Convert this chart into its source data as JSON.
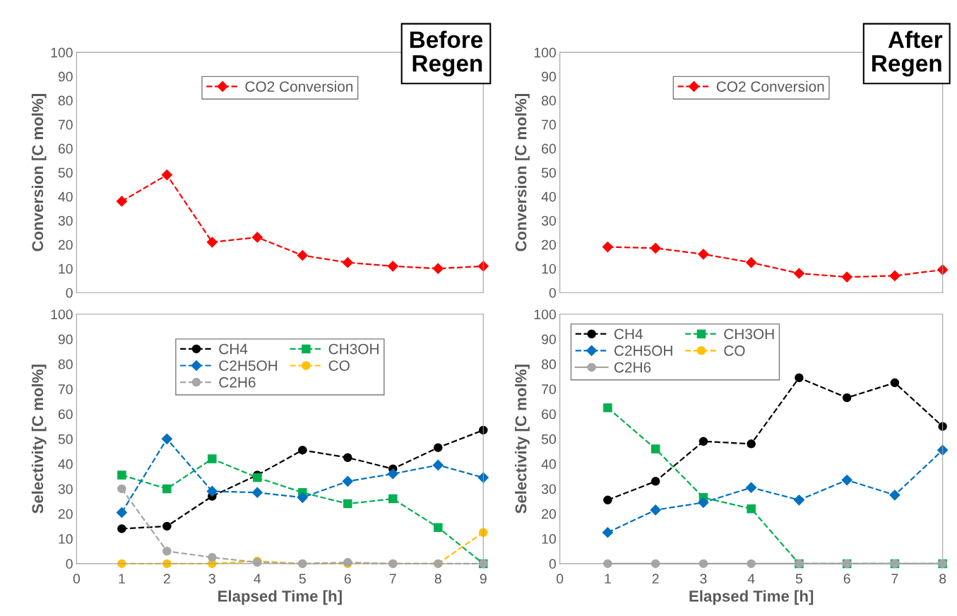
{
  "chart_data": [
    {
      "type": "line",
      "ylabel": "Conversion [C mol%]",
      "annotations": [
        "Before\nRegen"
      ],
      "x": [
        1,
        2,
        3,
        4,
        5,
        6,
        7,
        8,
        9
      ],
      "xlim": [
        0,
        9
      ],
      "xticks": [
        0,
        1,
        2,
        3,
        4,
        5,
        6,
        7,
        8,
        9
      ],
      "ylim": [
        0,
        100
      ],
      "yticks": [
        0,
        10,
        20,
        30,
        40,
        50,
        60,
        70,
        80,
        90,
        100
      ],
      "tick_labels": "y",
      "legend": "top",
      "line_style": "dashed",
      "series": [
        {
          "name": "CO2 Conversion",
          "color": "#ff0000",
          "marker": "diamond",
          "values": [
            38,
            49,
            21,
            23,
            15.5,
            12.5,
            11,
            10,
            11
          ]
        }
      ]
    },
    {
      "type": "line",
      "ylabel": "Conversion [C mol%]",
      "annotations": [
        "After\nRegen"
      ],
      "x": [
        1,
        2,
        3,
        4,
        5,
        6,
        7,
        8
      ],
      "xlim": [
        0,
        8
      ],
      "xticks": [
        0,
        1,
        2,
        3,
        4,
        5,
        6,
        7,
        8
      ],
      "ylim": [
        0,
        100
      ],
      "yticks": [
        0,
        10,
        20,
        30,
        40,
        50,
        60,
        70,
        80,
        90,
        100
      ],
      "tick_labels": "y",
      "legend": "top",
      "line_style": "dashed",
      "series": [
        {
          "name": "CO2 Conversion",
          "color": "#ff0000",
          "marker": "diamond",
          "values": [
            19,
            18.5,
            16,
            12.5,
            8,
            6.5,
            7,
            9.5
          ]
        }
      ]
    },
    {
      "type": "line",
      "ylabel": "Selectivity [C mol%]",
      "xlabel": "Elapsed Time [h]",
      "x": [
        1,
        2,
        3,
        4,
        5,
        6,
        7,
        8,
        9
      ],
      "xlim": [
        0,
        9
      ],
      "xticks": [
        0,
        1,
        2,
        3,
        4,
        5,
        6,
        7,
        8,
        9
      ],
      "ylim": [
        0,
        100
      ],
      "yticks": [
        0,
        10,
        20,
        30,
        40,
        50,
        60,
        70,
        80,
        90,
        100
      ],
      "legend": "top",
      "line_style": "dashed",
      "series": [
        {
          "name": "CH4",
          "color": "#000000",
          "marker": "circle",
          "values": [
            14,
            15,
            27,
            35.5,
            45.5,
            42.5,
            38,
            46.5,
            53.5
          ]
        },
        {
          "name": "CH3OH",
          "color": "#00b050",
          "marker": "square",
          "values": [
            35.5,
            30,
            42,
            34.5,
            28.5,
            24,
            26,
            14.5,
            0
          ]
        },
        {
          "name": "C2H5OH",
          "color": "#0070c0",
          "marker": "diamond",
          "values": [
            20.5,
            50,
            29,
            28.5,
            26.5,
            33,
            36,
            39.5,
            34.5
          ]
        },
        {
          "name": "CO",
          "color": "#ffc000",
          "marker": "circle",
          "values": [
            0,
            0,
            0,
            1,
            0,
            0,
            0,
            0,
            12.5
          ]
        },
        {
          "name": "C2H6",
          "color": "#a6a6a6",
          "marker": "circle",
          "values": [
            30,
            5,
            2.5,
            0.5,
            0,
            0.5,
            0,
            0,
            0
          ]
        }
      ]
    },
    {
      "type": "line",
      "ylabel": "Selectivity [C mol%]",
      "xlabel": "Elapsed Time [h]",
      "x": [
        1,
        2,
        3,
        4,
        5,
        6,
        7,
        8
      ],
      "xlim": [
        0,
        8
      ],
      "xticks": [
        0,
        1,
        2,
        3,
        4,
        5,
        6,
        7,
        8
      ],
      "ylim": [
        0,
        100
      ],
      "yticks": [
        0,
        10,
        20,
        30,
        40,
        50,
        60,
        70,
        80,
        90,
        100
      ],
      "legend": "top left",
      "line_style": "dashed",
      "series": [
        {
          "name": "CH4",
          "color": "#000000",
          "marker": "circle",
          "values": [
            25.5,
            33,
            49,
            48,
            74.5,
            66.5,
            72.5,
            55
          ]
        },
        {
          "name": "CH3OH",
          "color": "#00b050",
          "marker": "square",
          "values": [
            62.5,
            46,
            26.5,
            22,
            0,
            0,
            0,
            0
          ]
        },
        {
          "name": "C2H5OH",
          "color": "#0070c0",
          "marker": "diamond",
          "values": [
            12.5,
            21.5,
            24.5,
            30.5,
            25.5,
            33.5,
            27.5,
            45.5
          ]
        },
        {
          "name": "CO",
          "color": "#ffc000",
          "marker": "circle",
          "values": [
            null,
            null,
            null,
            null,
            null,
            null,
            null,
            null
          ]
        },
        {
          "name": "C2H6",
          "color": "#a6a6a6",
          "marker": "circle",
          "line_style": "solid",
          "values": [
            0,
            0,
            0,
            0,
            0,
            0,
            0,
            0
          ]
        }
      ]
    }
  ]
}
